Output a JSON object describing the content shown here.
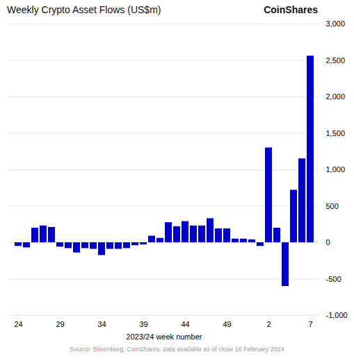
{
  "chart_data": {
    "type": "bar",
    "title": "Weekly Crypto Asset Flows (US$m)",
    "annotations": [
      "CoinShares",
      "Source: Bloomberg, CoinShares, data available as of close 16 February 2024"
    ],
    "xlabel": "2023/24 week number",
    "categories": [
      "24",
      null,
      null,
      null,
      null,
      "29",
      null,
      null,
      null,
      null,
      "34",
      null,
      null,
      null,
      null,
      "39",
      null,
      null,
      null,
      null,
      "44",
      null,
      null,
      null,
      null,
      "49",
      null,
      null,
      null,
      null,
      "2",
      null,
      null,
      null,
      null,
      "7"
    ],
    "values": [
      -50,
      -70,
      200,
      230,
      210,
      -60,
      -80,
      -140,
      -80,
      -90,
      -175,
      -90,
      -90,
      -80,
      -40,
      -30,
      90,
      60,
      275,
      220,
      290,
      230,
      230,
      330,
      190,
      190,
      50,
      50,
      40,
      -50,
      1300,
      200,
      -600,
      720,
      1150,
      2560
    ],
    "color": "#0000CC",
    "ylim": [
      -1000,
      3000
    ],
    "yticks": [
      {
        "value": -1000,
        "label": "-1,000"
      },
      -500,
      0,
      500,
      {
        "value": 1000,
        "label": "1,000"
      },
      {
        "value": 1500,
        "label": "1,500"
      },
      {
        "value": 2000,
        "label": "2,000"
      },
      {
        "value": 2500,
        "label": "2,500"
      },
      {
        "value": 3000,
        "label": "3,000"
      }
    ],
    "grid": true
  }
}
